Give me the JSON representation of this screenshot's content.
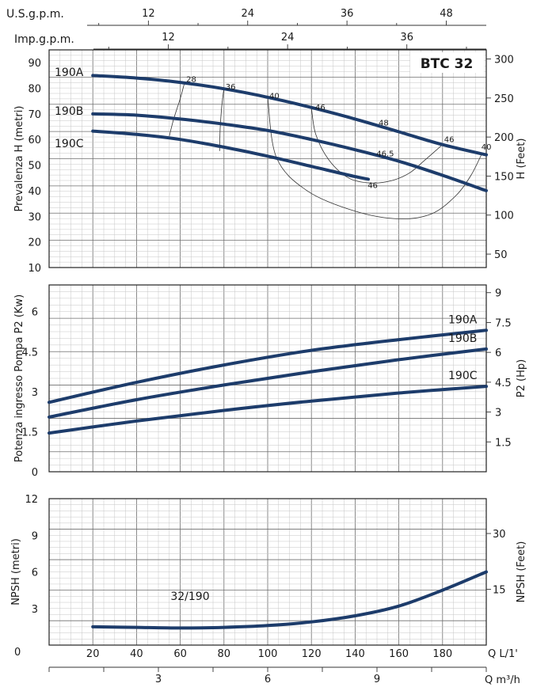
{
  "colors": {
    "curve": "#1d3c6b",
    "frame": "#222222",
    "grid_minor": "#c6c6c6",
    "grid_major": "#6e6e6e"
  },
  "top_scales": {
    "usgpm": {
      "label": "U.S.g.p.m.",
      "ticks": [
        12,
        24,
        36,
        48
      ]
    },
    "impgpm": {
      "label": "Imp.g.p.m.",
      "ticks": [
        12,
        24,
        36
      ]
    }
  },
  "bottom_scales": {
    "lmin": {
      "label": "Q L/1'",
      "ticks": [
        20,
        40,
        60,
        80,
        100,
        120,
        140,
        160,
        180
      ]
    },
    "m3h": {
      "label": "Q m³/h",
      "ticks": [
        3,
        6,
        9
      ]
    },
    "origin": "0"
  },
  "chart_data": [
    {
      "type": "line",
      "id": "head",
      "title": "BTC 32",
      "ylabel": "Prevalenza H (metri)",
      "ylabel_right": "H (Feet)",
      "xlim": [
        0,
        200
      ],
      "ylim": [
        10,
        95
      ],
      "yticks": [
        10,
        20,
        30,
        40,
        50,
        60,
        70,
        80,
        90
      ],
      "yticks_right": [
        50,
        100,
        150,
        200,
        250,
        300
      ],
      "series": [
        {
          "name": "190A",
          "x": [
            20,
            40,
            60,
            80,
            100,
            120,
            140,
            160,
            180,
            200
          ],
          "y": [
            85,
            84,
            82.3,
            79.8,
            76.5,
            72.5,
            68,
            63,
            58,
            54
          ]
        },
        {
          "name": "190B",
          "x": [
            20,
            40,
            60,
            80,
            100,
            120,
            140,
            160,
            180,
            200
          ],
          "y": [
            70,
            69.5,
            68,
            66,
            63.5,
            60,
            56,
            51.5,
            46,
            40
          ]
        },
        {
          "name": "190C",
          "x": [
            20,
            40,
            60,
            80,
            100,
            120,
            140,
            146
          ],
          "y": [
            63.3,
            62,
            60,
            57,
            53.5,
            49.5,
            45.5,
            44.5
          ]
        }
      ],
      "efficiency_labels": [
        {
          "text": "28",
          "x": 62,
          "y": 82.5
        },
        {
          "text": "36",
          "x": 80,
          "y": 79.5
        },
        {
          "text": "40",
          "x": 100,
          "y": 76
        },
        {
          "text": "46",
          "x": 121,
          "y": 71.5
        },
        {
          "text": "48",
          "x": 150,
          "y": 65.5
        },
        {
          "text": "46.5",
          "x": 149,
          "y": 53.5
        },
        {
          "text": "46",
          "x": 180,
          "y": 59
        },
        {
          "text": "40",
          "x": 197,
          "y": 56
        },
        {
          "text": "46",
          "x": 145,
          "y": 41
        }
      ],
      "iso_efficiency": [
        {
          "label": "28",
          "x": [
            55,
            57,
            60,
            62
          ],
          "y": [
            61.3,
            68,
            76,
            82.3
          ]
        },
        {
          "label": "36",
          "x": [
            78,
            78.3,
            79,
            80
          ],
          "y": [
            55.5,
            65,
            73,
            80
          ]
        },
        {
          "label": "40",
          "x": [
            100,
            104,
            118,
            140,
            160,
            175,
            186,
            193,
            198
          ],
          "y": [
            76.5,
            53,
            40,
            32,
            29,
            31,
            38,
            46,
            54.5
          ]
        },
        {
          "label": "46",
          "x": [
            120,
            122,
            128,
            137,
            147,
            157,
            165,
            172,
            180
          ],
          "y": [
            72.5,
            62,
            52,
            45,
            43,
            44,
            47,
            52,
            58
          ]
        }
      ]
    },
    {
      "type": "line",
      "id": "power",
      "ylabel": "Potenza ingresso Pompa P2 (Kw)",
      "ylabel_right": "P2 (Hp)",
      "xlim": [
        0,
        200
      ],
      "ylim": [
        0,
        7
      ],
      "yticks": [
        "0",
        "1.5",
        "3",
        "4.5",
        "6"
      ],
      "yticks_right": [
        "1.5",
        "3",
        "4.5",
        "6",
        "7.5",
        "9"
      ],
      "series": [
        {
          "name": "190A",
          "x": [
            0,
            40,
            80,
            120,
            160,
            200
          ],
          "y": [
            2.6,
            3.35,
            4,
            4.55,
            4.95,
            5.3
          ]
        },
        {
          "name": "190B",
          "x": [
            0,
            40,
            80,
            120,
            160,
            200
          ],
          "y": [
            2.05,
            2.7,
            3.25,
            3.75,
            4.2,
            4.6
          ]
        },
        {
          "name": "190C",
          "x": [
            0,
            40,
            80,
            120,
            160,
            200
          ],
          "y": [
            1.45,
            1.9,
            2.3,
            2.65,
            2.95,
            3.2
          ]
        }
      ]
    },
    {
      "type": "line",
      "id": "npsh",
      "ylabel": "NPSH (metri)",
      "ylabel_right": "NPSH (Feet)",
      "xlim": [
        0,
        200
      ],
      "ylim": [
        0,
        12
      ],
      "yticks": [
        "3",
        "6",
        "9",
        "12"
      ],
      "yticks_right": [
        "15",
        "30"
      ],
      "series": [
        {
          "name": "32/190",
          "x": [
            20,
            40,
            60,
            80,
            100,
            120,
            140,
            160,
            180,
            200
          ],
          "y": [
            1.5,
            1.45,
            1.4,
            1.45,
            1.6,
            1.9,
            2.4,
            3.2,
            4.5,
            6.0
          ]
        }
      ]
    }
  ]
}
